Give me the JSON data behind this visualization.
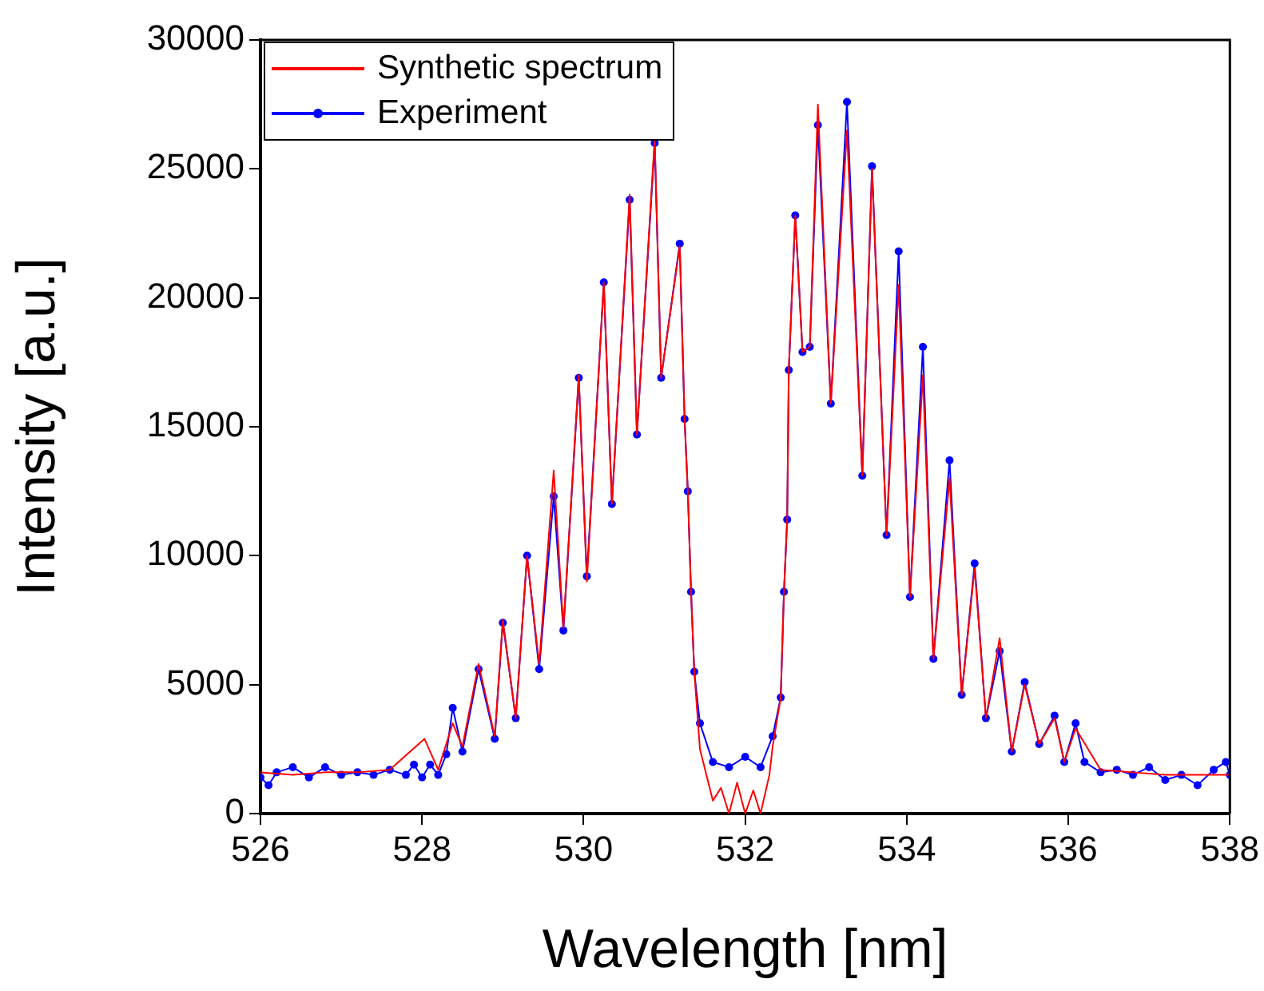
{
  "chart_data": {
    "type": "line",
    "xlabel": "Wavelength [nm]",
    "ylabel": "Intensity [a.u.]",
    "xlim": [
      526,
      538
    ],
    "xticks": [
      526,
      528,
      530,
      532,
      534,
      536,
      538
    ],
    "ylim": [
      0,
      30000
    ],
    "yticks": [
      0,
      5000,
      10000,
      15000,
      20000,
      25000,
      30000
    ],
    "grid": false,
    "legend": "top left",
    "series": [
      {
        "name": "Synthetic spectrum",
        "color": "#ff0000",
        "marker": "none",
        "x": [
          526,
          526.4,
          526.8,
          527.2,
          527.6,
          528.03,
          528.2,
          528.38,
          528.5,
          528.7,
          528.9,
          529.0,
          529.16,
          529.3,
          529.45,
          529.63,
          529.75,
          529.94,
          530.04,
          530.25,
          530.35,
          530.57,
          530.66,
          530.88,
          530.96,
          531.19,
          531.25,
          531.29,
          531.33,
          531.37,
          531.44,
          531.6,
          531.7,
          531.8,
          531.9,
          532.0,
          532.1,
          532.19,
          532.3,
          532.34,
          532.44,
          532.48,
          532.52,
          532.54,
          532.62,
          532.71,
          532.8,
          532.9,
          533.06,
          533.26,
          533.45,
          533.57,
          533.75,
          533.9,
          534.04,
          534.2,
          534.33,
          534.53,
          534.68,
          534.84,
          534.98,
          535.15,
          535.3,
          535.46,
          535.64,
          535.83,
          535.95,
          536.09,
          536.4,
          536.8,
          537.2,
          537.6,
          538
        ],
        "values": [
          1600,
          1500,
          1600,
          1600,
          1700,
          2900,
          1700,
          3500,
          2600,
          5800,
          3000,
          7500,
          3700,
          10000,
          5800,
          13300,
          7200,
          17000,
          9000,
          20600,
          12000,
          24000,
          14700,
          26200,
          16900,
          22000,
          15300,
          12500,
          8600,
          5500,
          2500,
          500,
          1000,
          0,
          1200,
          0,
          900,
          0,
          1500,
          2600,
          4500,
          8600,
          11400,
          17200,
          23200,
          17900,
          18100,
          27500,
          15900,
          26500,
          13100,
          25000,
          10800,
          20500,
          8400,
          17000,
          6000,
          13000,
          4600,
          9500,
          3700,
          6800,
          2400,
          5000,
          2700,
          3700,
          2000,
          3300,
          1700,
          1600,
          1500,
          1500,
          1500
        ]
      },
      {
        "name": "Experiment",
        "color": "#0000ff",
        "marker": "circle",
        "x": [
          526,
          526.1,
          526.2,
          526.4,
          526.6,
          526.8,
          527.0,
          527.2,
          527.4,
          527.6,
          527.8,
          527.9,
          528.0,
          528.1,
          528.2,
          528.3,
          528.38,
          528.5,
          528.7,
          528.9,
          529.0,
          529.16,
          529.3,
          529.45,
          529.63,
          529.75,
          529.94,
          530.04,
          530.25,
          530.35,
          530.57,
          530.66,
          530.88,
          530.96,
          531.19,
          531.25,
          531.29,
          531.33,
          531.37,
          531.44,
          531.6,
          531.8,
          532.0,
          532.19,
          532.34,
          532.44,
          532.48,
          532.52,
          532.54,
          532.62,
          532.71,
          532.8,
          532.9,
          533.06,
          533.26,
          533.45,
          533.57,
          533.75,
          533.9,
          534.04,
          534.2,
          534.33,
          534.53,
          534.68,
          534.84,
          534.98,
          535.15,
          535.3,
          535.46,
          535.64,
          535.83,
          535.95,
          536.09,
          536.2,
          536.4,
          536.6,
          536.8,
          537.0,
          537.2,
          537.4,
          537.6,
          537.8,
          537.95,
          538
        ],
        "values": [
          1400,
          1100,
          1600,
          1800,
          1400,
          1800,
          1500,
          1600,
          1500,
          1700,
          1500,
          1900,
          1400,
          1900,
          1500,
          2300,
          4100,
          2400,
          5600,
          2900,
          7400,
          3700,
          10000,
          5600,
          12300,
          7100,
          16900,
          9200,
          20600,
          12000,
          23800,
          14700,
          26000,
          16900,
          22100,
          15300,
          12500,
          8600,
          5500,
          3500,
          2000,
          1800,
          2200,
          1800,
          3000,
          4500,
          8600,
          11400,
          17200,
          23200,
          17900,
          18100,
          26700,
          15900,
          27600,
          13100,
          25100,
          10800,
          21800,
          8400,
          18100,
          6000,
          13700,
          4600,
          9700,
          3700,
          6300,
          2400,
          5100,
          2700,
          3800,
          2000,
          3500,
          2000,
          1600,
          1700,
          1500,
          1800,
          1300,
          1500,
          1100,
          1700,
          2000,
          1500
        ]
      }
    ]
  }
}
